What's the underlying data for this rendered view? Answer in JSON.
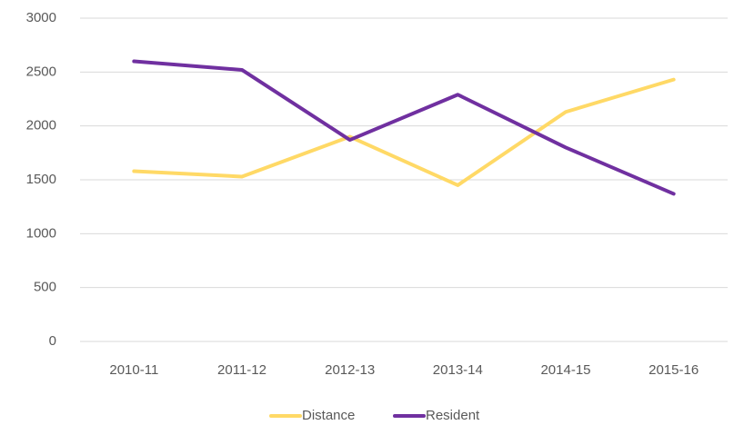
{
  "chart_data": {
    "type": "line",
    "categories": [
      "2010-11",
      "2011-12",
      "2012-13",
      "2013-14",
      "2014-15",
      "2015-16"
    ],
    "series": [
      {
        "name": "Distance",
        "color": "#ffd966",
        "values": [
          1580,
          1530,
          1900,
          1450,
          2130,
          2430
        ]
      },
      {
        "name": "Resident",
        "color": "#7030a0",
        "values": [
          2600,
          2520,
          1870,
          2290,
          1800,
          1370
        ]
      }
    ],
    "ylim": [
      0,
      3000
    ],
    "yticks": [
      0,
      500,
      1000,
      1500,
      2000,
      2500,
      3000
    ],
    "grid": true,
    "legend": "bottom"
  }
}
